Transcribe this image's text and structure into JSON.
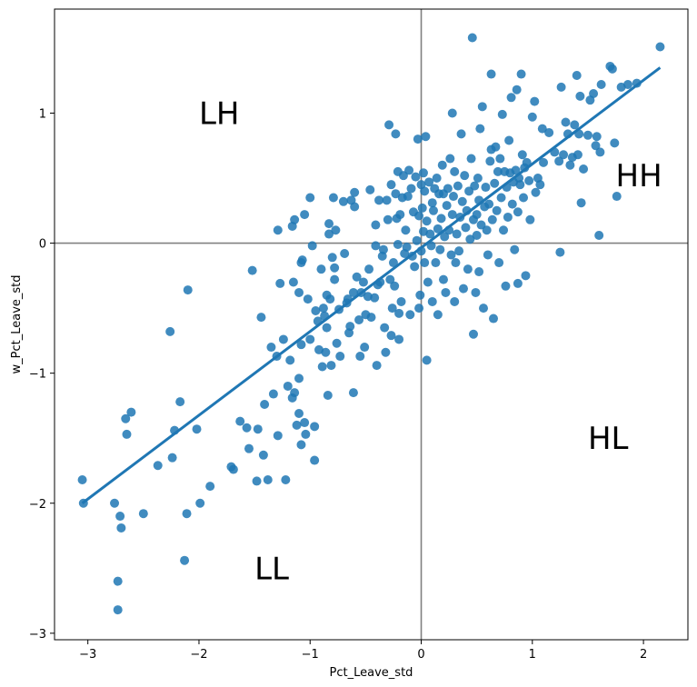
{
  "chart_data": {
    "type": "scatter",
    "title": "",
    "xlabel": "Pct_Leave_std",
    "ylabel": "w_Pct_Leave_std",
    "xlim": [
      -3.3,
      2.4
    ],
    "ylim": [
      -3.05,
      1.8
    ],
    "x_ticks": [
      -3,
      -2,
      -1,
      0,
      1,
      2
    ],
    "y_ticks": [
      -3,
      -2,
      -1,
      0,
      1
    ],
    "x_tick_labels": [
      "−3",
      "−2",
      "−1",
      "0",
      "1",
      "2"
    ],
    "y_tick_labels": [
      "−3",
      "−2",
      "−1",
      "0",
      "1"
    ],
    "grid": false,
    "reference_lines": {
      "x": 0,
      "y": 0,
      "color": "#808080"
    },
    "point_color": "#1f77b4",
    "fit_line": {
      "x": [
        -3.05,
        2.15
      ],
      "y": [
        -2.0,
        1.35
      ],
      "color": "#1f77b4"
    },
    "quadrant_labels": [
      {
        "text": "LH",
        "x": -2.0,
        "y": 1.0
      },
      {
        "text": "HH",
        "x": 1.75,
        "y": 0.52
      },
      {
        "text": "HL",
        "x": 1.5,
        "y": -1.5
      },
      {
        "text": "LL",
        "x": -1.5,
        "y": -2.5
      }
    ],
    "points": [
      [
        -3.05,
        -1.82
      ],
      [
        -3.04,
        -2.0
      ],
      [
        -2.76,
        -2.0
      ],
      [
        -2.73,
        -2.6
      ],
      [
        -2.73,
        -2.82
      ],
      [
        -2.71,
        -2.1
      ],
      [
        -2.7,
        -2.19
      ],
      [
        -2.66,
        -1.35
      ],
      [
        -2.65,
        -1.47
      ],
      [
        -2.61,
        -1.3
      ],
      [
        -2.5,
        -2.08
      ],
      [
        -2.37,
        -1.71
      ],
      [
        -2.26,
        -0.68
      ],
      [
        -2.24,
        -1.65
      ],
      [
        -2.22,
        -1.44
      ],
      [
        -2.17,
        -1.22
      ],
      [
        -2.13,
        -2.44
      ],
      [
        -2.11,
        -2.08
      ],
      [
        -2.1,
        -0.36
      ],
      [
        -2.02,
        -1.43
      ],
      [
        -1.99,
        -2.0
      ],
      [
        -1.9,
        -1.87
      ],
      [
        -1.71,
        -1.72
      ],
      [
        -1.69,
        -1.74
      ],
      [
        -1.63,
        -1.37
      ],
      [
        -1.57,
        -1.42
      ],
      [
        -1.55,
        -1.58
      ],
      [
        -1.52,
        -0.21
      ],
      [
        -1.48,
        -1.83
      ],
      [
        -1.47,
        -1.43
      ],
      [
        -1.44,
        -0.57
      ],
      [
        -1.42,
        -1.63
      ],
      [
        -1.41,
        -1.24
      ],
      [
        -1.38,
        -1.82
      ],
      [
        -1.35,
        -0.8
      ],
      [
        -1.33,
        -1.16
      ],
      [
        -1.3,
        -0.87
      ],
      [
        -1.29,
        -1.48
      ],
      [
        -1.29,
        0.1
      ],
      [
        -1.27,
        -0.31
      ],
      [
        -1.24,
        -0.74
      ],
      [
        -1.22,
        -1.82
      ],
      [
        -1.2,
        -1.1
      ],
      [
        -1.18,
        -0.9
      ],
      [
        -1.16,
        -1.19
      ],
      [
        -1.16,
        0.13
      ],
      [
        -1.15,
        -0.3
      ],
      [
        -1.14,
        -1.15
      ],
      [
        -1.14,
        0.18
      ],
      [
        -1.12,
        -1.4
      ],
      [
        -1.1,
        -1.31
      ],
      [
        -1.1,
        -0.38
      ],
      [
        -1.1,
        -1.04
      ],
      [
        -1.08,
        -0.15
      ],
      [
        -1.08,
        -1.55
      ],
      [
        -1.08,
        -0.78
      ],
      [
        -1.07,
        -0.13
      ],
      [
        -1.05,
        -1.38
      ],
      [
        -1.05,
        0.22
      ],
      [
        -1.04,
        -1.47
      ],
      [
        -1.02,
        -0.43
      ],
      [
        -1.0,
        0.35
      ],
      [
        -1.0,
        -0.74
      ],
      [
        -0.98,
        -0.02
      ],
      [
        -0.96,
        -1.67
      ],
      [
        -0.96,
        -1.41
      ],
      [
        -0.95,
        -0.52
      ],
      [
        -0.93,
        -0.6
      ],
      [
        -0.92,
        -0.82
      ],
      [
        -0.9,
        -0.2
      ],
      [
        -0.89,
        -0.95
      ],
      [
        -0.88,
        -0.5
      ],
      [
        -0.87,
        -0.56
      ],
      [
        -0.86,
        -0.84
      ],
      [
        -0.85,
        -0.65
      ],
      [
        -0.85,
        -0.4
      ],
      [
        -0.84,
        -1.17
      ],
      [
        -0.83,
        0.07
      ],
      [
        -0.83,
        0.15
      ],
      [
        -0.82,
        -0.43
      ],
      [
        -0.81,
        -0.94
      ],
      [
        -0.8,
        -0.11
      ],
      [
        -0.79,
        0.35
      ],
      [
        -0.78,
        -0.19
      ],
      [
        -0.78,
        -0.28
      ],
      [
        -0.77,
        0.1
      ],
      [
        -0.76,
        -0.77
      ],
      [
        -0.74,
        -0.51
      ],
      [
        -0.73,
        -0.87
      ],
      [
        -0.7,
        0.32
      ],
      [
        -0.69,
        -0.08
      ],
      [
        -0.67,
        -0.46
      ],
      [
        -0.66,
        -0.43
      ],
      [
        -0.65,
        -0.69
      ],
      [
        -0.64,
        -0.64
      ],
      [
        -0.63,
        0.33
      ],
      [
        -0.61,
        -1.15
      ],
      [
        -0.61,
        -0.38
      ],
      [
        -0.6,
        0.28
      ],
      [
        -0.6,
        0.39
      ],
      [
        -0.58,
        -0.26
      ],
      [
        -0.56,
        -0.59
      ],
      [
        -0.55,
        -0.87
      ],
      [
        -0.54,
        -0.38
      ],
      [
        -0.52,
        -0.3
      ],
      [
        -0.51,
        -0.8
      ],
      [
        -0.5,
        -0.55
      ],
      [
        -0.48,
        -0.41
      ],
      [
        -0.47,
        -0.2
      ],
      [
        -0.46,
        0.41
      ],
      [
        -0.45,
        -0.57
      ],
      [
        -0.42,
        -0.42
      ],
      [
        -0.41,
        0.14
      ],
      [
        -0.41,
        -0.02
      ],
      [
        -0.4,
        -0.94
      ],
      [
        -0.39,
        -0.32
      ],
      [
        -0.38,
        0.33
      ],
      [
        -0.37,
        -0.3
      ],
      [
        -0.35,
        -0.1
      ],
      [
        -0.34,
        -0.05
      ],
      [
        -0.33,
        -0.65
      ],
      [
        -0.32,
        -0.84
      ],
      [
        -0.31,
        0.33
      ],
      [
        -0.3,
        0.18
      ],
      [
        -0.29,
        0.91
      ],
      [
        -0.28,
        -0.28
      ],
      [
        -0.27,
        -0.71
      ],
      [
        -0.27,
        0.45
      ],
      [
        -0.26,
        -0.5
      ],
      [
        -0.25,
        -0.15
      ],
      [
        -0.24,
        -0.33
      ],
      [
        -0.23,
        0.84
      ],
      [
        -0.23,
        0.38
      ],
      [
        -0.22,
        0.19
      ],
      [
        -0.21,
        -0.01
      ],
      [
        -0.21,
        0.55
      ],
      [
        -0.2,
        -0.54
      ],
      [
        -0.2,
        -0.74
      ],
      [
        -0.19,
        0.22
      ],
      [
        -0.18,
        -0.45
      ],
      [
        -0.17,
        0.35
      ],
      [
        -0.16,
        0.52
      ],
      [
        -0.15,
        -0.08
      ],
      [
        -0.14,
        0.1
      ],
      [
        -0.13,
        -0.03
      ],
      [
        -0.12,
        0.36
      ],
      [
        -0.11,
        0.56
      ],
      [
        -0.1,
        -0.55
      ],
      [
        -0.09,
        0.42
      ],
      [
        -0.08,
        -0.1
      ],
      [
        -0.07,
        0.24
      ],
      [
        -0.06,
        -0.18
      ],
      [
        -0.05,
        0.51
      ],
      [
        -0.04,
        0.02
      ],
      [
        -0.03,
        0.8
      ],
      [
        -0.02,
        -0.5
      ],
      [
        -0.02,
        0.21
      ],
      [
        -0.01,
        -0.4
      ],
      [
        0.0,
        0.45
      ],
      [
        0.0,
        -0.06
      ],
      [
        0.01,
        0.27
      ],
      [
        0.02,
        0.09
      ],
      [
        0.02,
        0.54
      ],
      [
        0.03,
        -0.15
      ],
      [
        0.03,
        0.4
      ],
      [
        0.04,
        0.82
      ],
      [
        0.05,
        0.17
      ],
      [
        0.05,
        -0.9
      ],
      [
        0.06,
        -0.3
      ],
      [
        0.07,
        0.47
      ],
      [
        0.08,
        0.07
      ],
      [
        0.09,
        -0.02
      ],
      [
        0.1,
        0.31
      ],
      [
        0.1,
        -0.45
      ],
      [
        0.11,
        0.25
      ],
      [
        0.12,
        0.42
      ],
      [
        0.13,
        -0.15
      ],
      [
        0.14,
        0.5
      ],
      [
        0.15,
        0.11
      ],
      [
        0.15,
        -0.55
      ],
      [
        0.16,
        0.38
      ],
      [
        0.17,
        -0.05
      ],
      [
        0.18,
        0.19
      ],
      [
        0.19,
        0.6
      ],
      [
        0.2,
        -0.28
      ],
      [
        0.2,
        0.38
      ],
      [
        0.21,
        0.05
      ],
      [
        0.22,
        -0.38
      ],
      [
        0.23,
        0.29
      ],
      [
        0.24,
        0.42
      ],
      [
        0.25,
        0.1
      ],
      [
        0.26,
        0.65
      ],
      [
        0.27,
        -0.09
      ],
      [
        0.28,
        0.22
      ],
      [
        0.28,
        1.0
      ],
      [
        0.29,
        0.36
      ],
      [
        0.3,
        -0.45
      ],
      [
        0.3,
        0.55
      ],
      [
        0.31,
        -0.15
      ],
      [
        0.32,
        0.07
      ],
      [
        0.33,
        0.44
      ],
      [
        0.34,
        -0.06
      ],
      [
        0.35,
        0.2
      ],
      [
        0.36,
        0.84
      ],
      [
        0.37,
        0.32
      ],
      [
        0.38,
        -0.35
      ],
      [
        0.39,
        0.52
      ],
      [
        0.4,
        0.12
      ],
      [
        0.41,
        0.25
      ],
      [
        0.42,
        -0.2
      ],
      [
        0.43,
        0.4
      ],
      [
        0.44,
        0.03
      ],
      [
        0.45,
        0.65
      ],
      [
        0.46,
        1.58
      ],
      [
        0.47,
        0.18
      ],
      [
        0.47,
        -0.7
      ],
      [
        0.48,
        0.44
      ],
      [
        0.49,
        -0.38
      ],
      [
        0.5,
        0.22
      ],
      [
        0.5,
        0.06
      ],
      [
        0.51,
        0.5
      ],
      [
        0.52,
        -0.22
      ],
      [
        0.52,
        0.33
      ],
      [
        0.53,
        0.88
      ],
      [
        0.54,
        0.14
      ],
      [
        0.55,
        1.05
      ],
      [
        0.56,
        -0.5
      ],
      [
        0.57,
        0.28
      ],
      [
        0.58,
        0.43
      ],
      [
        0.59,
        0.1
      ],
      [
        0.6,
        -0.09
      ],
      [
        0.61,
        0.3
      ],
      [
        0.62,
        0.63
      ],
      [
        0.63,
        0.72
      ],
      [
        0.63,
        1.3
      ],
      [
        0.64,
        0.18
      ],
      [
        0.65,
        -0.58
      ],
      [
        0.66,
        0.46
      ],
      [
        0.67,
        0.74
      ],
      [
        0.68,
        0.25
      ],
      [
        0.69,
        0.55
      ],
      [
        0.7,
        -0.15
      ],
      [
        0.71,
        0.65
      ],
      [
        0.72,
        0.35
      ],
      [
        0.73,
        0.99
      ],
      [
        0.74,
        0.1
      ],
      [
        0.75,
        0.55
      ],
      [
        0.76,
        -0.33
      ],
      [
        0.77,
        0.43
      ],
      [
        0.78,
        0.2
      ],
      [
        0.79,
        0.79
      ],
      [
        0.8,
        0.54
      ],
      [
        0.81,
        1.12
      ],
      [
        0.82,
        0.3
      ],
      [
        0.83,
        0.47
      ],
      [
        0.84,
        -0.05
      ],
      [
        0.85,
        0.56
      ],
      [
        0.86,
        1.18
      ],
      [
        0.87,
        0.24
      ],
      [
        0.87,
        -0.31
      ],
      [
        0.88,
        0.5
      ],
      [
        0.89,
        0.45
      ],
      [
        0.9,
        1.3
      ],
      [
        0.91,
        0.68
      ],
      [
        0.92,
        0.35
      ],
      [
        0.93,
        0.58
      ],
      [
        0.94,
        -0.25
      ],
      [
        0.95,
        0.62
      ],
      [
        0.97,
        0.48
      ],
      [
        0.98,
        0.18
      ],
      [
        1.0,
        0.97
      ],
      [
        1.02,
        1.09
      ],
      [
        1.03,
        0.39
      ],
      [
        1.05,
        0.5
      ],
      [
        1.07,
        0.45
      ],
      [
        1.09,
        0.88
      ],
      [
        1.1,
        0.62
      ],
      [
        1.15,
        0.85
      ],
      [
        1.2,
        0.7
      ],
      [
        1.24,
        0.63
      ],
      [
        1.25,
        -0.07
      ],
      [
        1.26,
        1.2
      ],
      [
        1.28,
        0.68
      ],
      [
        1.3,
        0.93
      ],
      [
        1.32,
        0.84
      ],
      [
        1.34,
        0.6
      ],
      [
        1.36,
        0.66
      ],
      [
        1.38,
        0.91
      ],
      [
        1.4,
        1.29
      ],
      [
        1.41,
        0.68
      ],
      [
        1.42,
        0.84
      ],
      [
        1.43,
        1.13
      ],
      [
        1.44,
        0.31
      ],
      [
        1.46,
        0.57
      ],
      [
        1.5,
        0.83
      ],
      [
        1.52,
        1.1
      ],
      [
        1.55,
        1.15
      ],
      [
        1.57,
        0.75
      ],
      [
        1.58,
        0.82
      ],
      [
        1.6,
        0.06
      ],
      [
        1.61,
        0.7
      ],
      [
        1.62,
        1.22
      ],
      [
        1.7,
        1.36
      ],
      [
        1.72,
        1.34
      ],
      [
        1.74,
        0.77
      ],
      [
        1.76,
        0.36
      ],
      [
        1.8,
        1.2
      ],
      [
        1.86,
        1.22
      ],
      [
        1.94,
        1.23
      ],
      [
        2.15,
        1.51
      ]
    ]
  }
}
